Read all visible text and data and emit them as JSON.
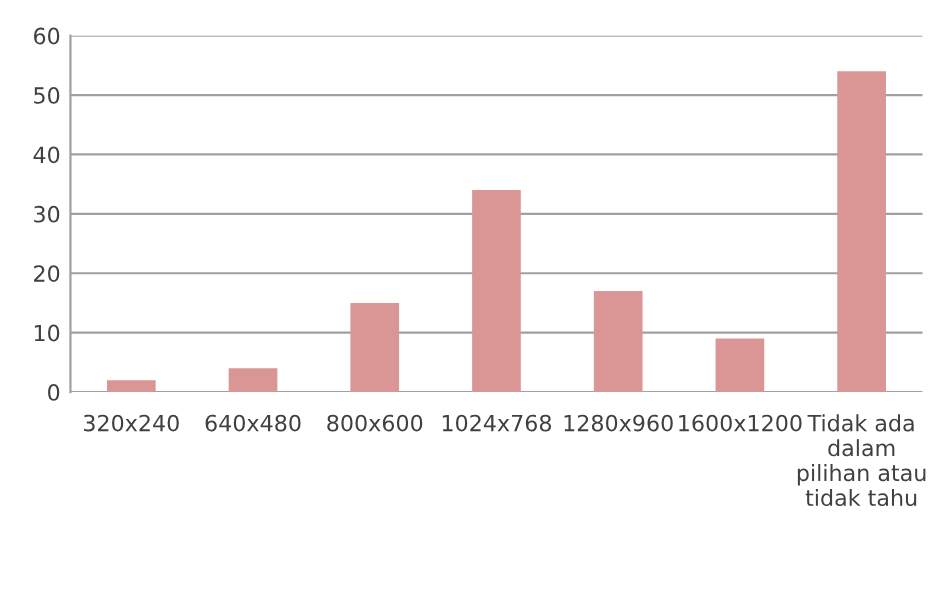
{
  "chart_data": {
    "type": "bar",
    "categories": [
      "320x240",
      "640x480",
      "800x600",
      "1024x768",
      "1280x960",
      "1600x1200",
      "Tidak ada dalam pilihan atau tidak tahu"
    ],
    "values": [
      2,
      4,
      15,
      34,
      17,
      9,
      54
    ],
    "color": "#d99694",
    "ylim": [
      0,
      60
    ],
    "yticks": [
      0,
      10,
      20,
      30,
      40,
      50,
      60
    ],
    "grid": "y",
    "legend": false
  }
}
